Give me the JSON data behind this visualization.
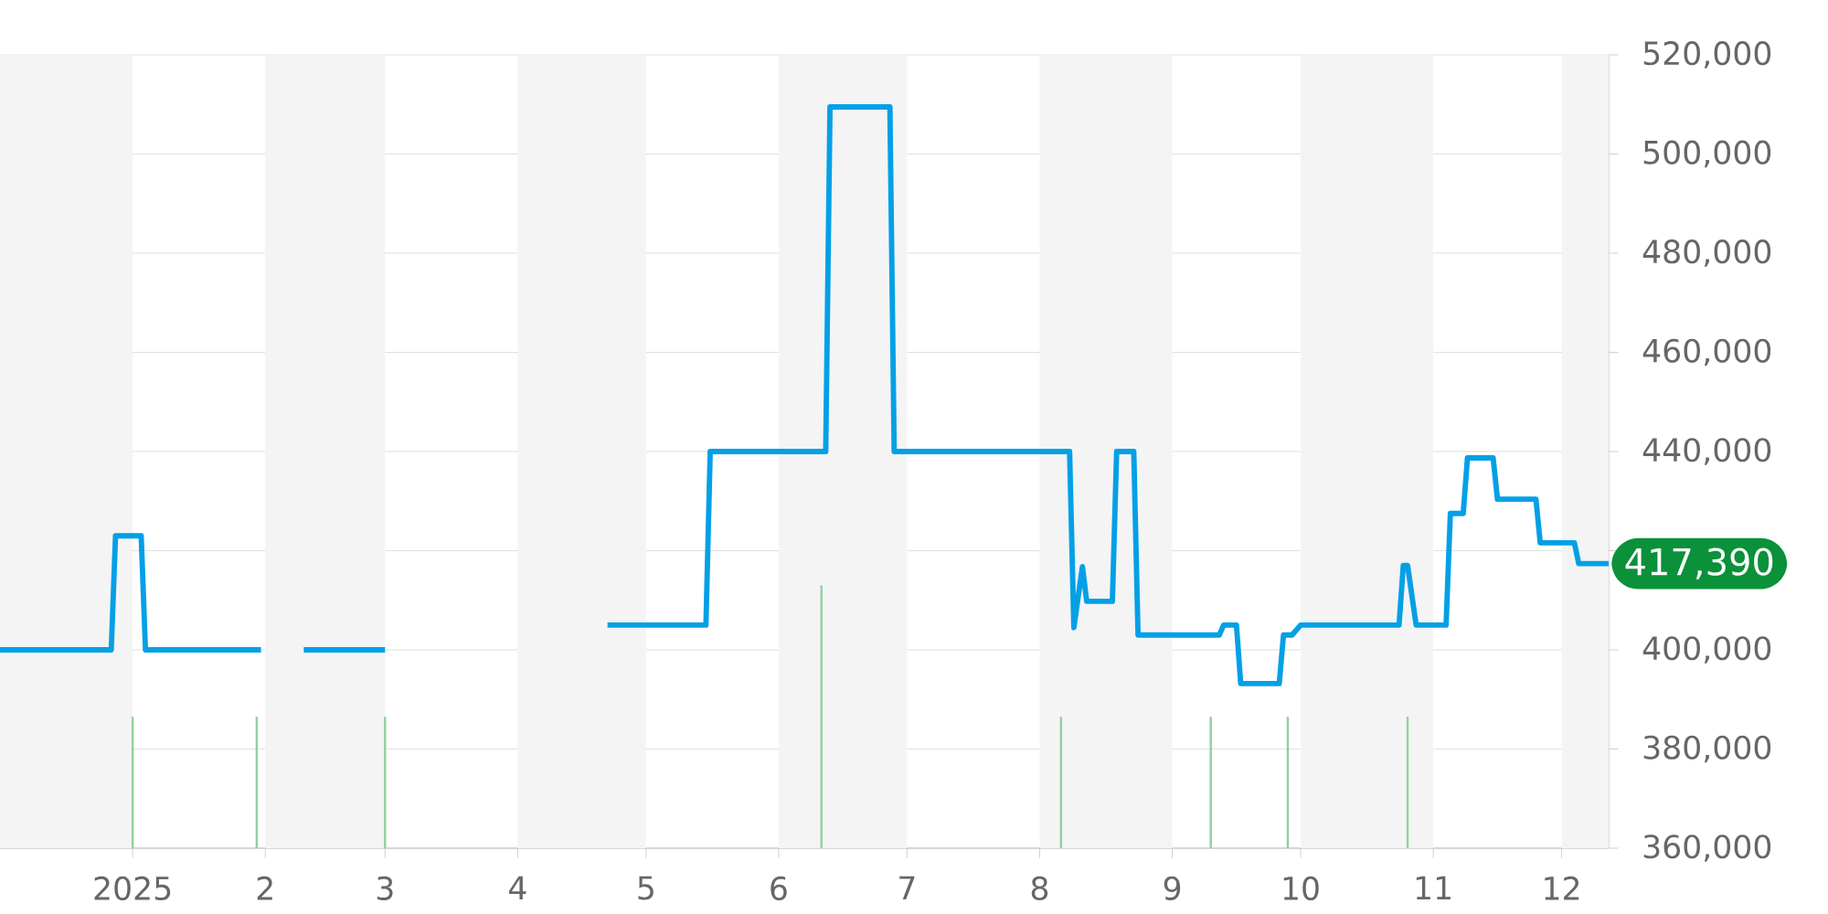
{
  "chart_data": {
    "type": "line",
    "xlim": [
      "2024-12-01",
      "2025-12-12"
    ],
    "ylim": [
      360000,
      520000
    ],
    "xticks": [
      {
        "value": "2025-01-01",
        "label": "2025"
      },
      {
        "value": "2025-02-01",
        "label": "2"
      },
      {
        "value": "2025-03-01",
        "label": "3"
      },
      {
        "value": "2025-04-01",
        "label": "4"
      },
      {
        "value": "2025-05-01",
        "label": "5"
      },
      {
        "value": "2025-06-01",
        "label": "6"
      },
      {
        "value": "2025-07-01",
        "label": "7"
      },
      {
        "value": "2025-08-01",
        "label": "8"
      },
      {
        "value": "2025-09-01",
        "label": "9"
      },
      {
        "value": "2025-10-01",
        "label": "10"
      },
      {
        "value": "2025-11-01",
        "label": "11"
      },
      {
        "value": "2025-12-01",
        "label": "12"
      }
    ],
    "yticks": [
      {
        "value": 360000,
        "label": "360,000"
      },
      {
        "value": 380000,
        "label": "380,000"
      },
      {
        "value": 400000,
        "label": "400,000"
      },
      {
        "value": 420000,
        "label": null
      },
      {
        "value": 440000,
        "label": "440,000"
      },
      {
        "value": 460000,
        "label": "460,000"
      },
      {
        "value": 480000,
        "label": "480,000"
      },
      {
        "value": 500000,
        "label": "500,000"
      },
      {
        "value": 520000,
        "label": "520,000"
      }
    ],
    "grid": "y",
    "bands": [
      {
        "axis": "x",
        "from": "2024-12-01",
        "to": "2025-01-01",
        "color": "#f4f4f4"
      },
      {
        "axis": "x",
        "from": "2025-02-01",
        "to": "2025-03-01",
        "color": "#f4f4f4"
      },
      {
        "axis": "x",
        "from": "2025-04-01",
        "to": "2025-05-01",
        "color": "#f4f4f4"
      },
      {
        "axis": "x",
        "from": "2025-06-01",
        "to": "2025-07-01",
        "color": "#f4f4f4"
      },
      {
        "axis": "x",
        "from": "2025-08-01",
        "to": "2025-09-01",
        "color": "#f4f4f4"
      },
      {
        "axis": "x",
        "from": "2025-10-01",
        "to": "2025-11-01",
        "color": "#f4f4f4"
      },
      {
        "axis": "x",
        "from": "2025-12-01",
        "to": "2025-12-12",
        "color": "#f4f4f4"
      }
    ],
    "series": [
      {
        "type": "bar",
        "color": "#8fd19e",
        "x": [
          "2025-01-01",
          "2025-01-30",
          "2025-03-01",
          "2025-06-11",
          "2025-08-06",
          "2025-09-10",
          "2025-09-28",
          "2025-10-26"
        ],
        "values": [
          386500,
          386500,
          386500,
          413000,
          386500,
          386500,
          386500,
          386500
        ]
      },
      {
        "color": "#03a0e6",
        "x": [
          "2024-12-01",
          "2024-12-27",
          "2024-12-28",
          "2025-01-03",
          "2025-01-04",
          "2025-01-31",
          "2025-02-05",
          "2025-02-10",
          "2025-03-01",
          "2025-04-05",
          "2025-04-22",
          "2025-05-15",
          "2025-05-16",
          "2025-06-12",
          "2025-06-13",
          "2025-06-27",
          "2025-06-28",
          "2025-08-08",
          "2025-08-09",
          "2025-08-11",
          "2025-08-12",
          "2025-08-18",
          "2025-08-19",
          "2025-08-23",
          "2025-08-24",
          "2025-09-12",
          "2025-09-13",
          "2025-09-16",
          "2025-09-17",
          "2025-09-26",
          "2025-09-27",
          "2025-09-29",
          "2025-10-01",
          "2025-10-24",
          "2025-10-25",
          "2025-10-26",
          "2025-10-28",
          "2025-11-04",
          "2025-11-05",
          "2025-11-08",
          "2025-11-09",
          "2025-11-15",
          "2025-11-16",
          "2025-11-25",
          "2025-11-26",
          "2025-12-04",
          "2025-12-05",
          "2025-12-12"
        ],
        "values": [
          400000,
          400000,
          423000,
          423000,
          400000,
          400000,
          null,
          400000,
          400000,
          null,
          405000,
          405000,
          440000,
          440000,
          509500,
          509500,
          440000,
          440000,
          404500,
          416800,
          409800,
          409800,
          440000,
          440000,
          403000,
          403000,
          405000,
          405000,
          393200,
          393200,
          403000,
          403000,
          405000,
          405000,
          417000,
          417000,
          405000,
          405000,
          427500,
          427500,
          438700,
          438700,
          430400,
          430400,
          421600,
          421600,
          417390,
          417390
        ]
      }
    ],
    "annotations": [
      {
        "text": "417,390",
        "x": "2025-12-12",
        "y": 417390
      }
    ]
  }
}
